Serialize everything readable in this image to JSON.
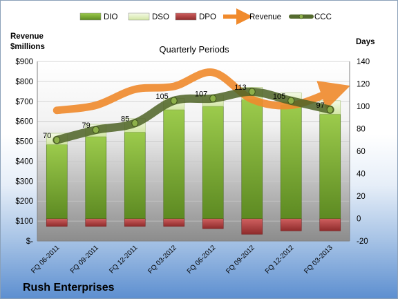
{
  "company": "Rush Enterprises",
  "chart_data": {
    "type": "bar",
    "title": "Quarterly Periods",
    "left_axis_label": [
      "Revenue",
      "$millions"
    ],
    "right_axis_label": "Days",
    "categories": [
      "FQ 06-2011",
      "FQ 09-2011",
      "FQ 12-2011",
      "FQ 03-2012",
      "FQ 06-2012",
      "FQ 09-2012",
      "FQ 12-2012",
      "FQ 03-2013"
    ],
    "left_axis": {
      "min": 0,
      "max": 900,
      "step": 100,
      "ticks": [
        "$-",
        "$100",
        "$200",
        "$300",
        "$400",
        "$500",
        "$600",
        "$700",
        "$800",
        "$900"
      ]
    },
    "right_axis": {
      "min": -20,
      "max": 140,
      "step": 20,
      "ticks": [
        "-20",
        "0",
        "20",
        "40",
        "60",
        "80",
        "100",
        "120",
        "140"
      ]
    },
    "legend": {
      "placement": "top",
      "items": [
        {
          "key": "dio",
          "label": "DIO",
          "color": "#6b9a2e"
        },
        {
          "key": "dso",
          "label": "DSO",
          "color": "#e4f0c8"
        },
        {
          "key": "dpo",
          "label": "DPO",
          "color": "#b84a4a"
        },
        {
          "key": "revenue",
          "label": "Revenue",
          "color": "#f08a2c"
        },
        {
          "key": "ccc",
          "label": "CCC",
          "color": "#556b2f"
        }
      ]
    },
    "series": [
      {
        "key": "dio",
        "axis": "right",
        "values": [
          66,
          73,
          77,
          97,
          100,
          106,
          101,
          93
        ]
      },
      {
        "key": "dso",
        "axis": "right",
        "values": [
          10,
          11,
          12,
          10,
          10,
          11,
          11,
          12
        ]
      },
      {
        "key": "dpo",
        "axis": "right",
        "values": [
          -7,
          -7,
          -7,
          -7,
          -9,
          -14,
          -11,
          -11
        ]
      },
      {
        "key": "revenue",
        "axis": "left",
        "values": [
          655,
          680,
          760,
          775,
          845,
          710,
          680,
          745
        ]
      },
      {
        "key": "ccc",
        "axis": "right",
        "values": [
          70,
          79,
          85,
          105,
          107,
          113,
          105,
          97
        ]
      }
    ],
    "ccc_labels": [
      "70",
      "79",
      "85",
      "105",
      "107",
      "113",
      "105",
      "97"
    ],
    "colors": {
      "dio_top": "#9ccb4c",
      "dio_bottom": "#5d8a22",
      "dso_top": "#f4fae6",
      "dso_bottom": "#d2e6a4",
      "dpo_top": "#d06060",
      "dpo_bottom": "#8e2b2b",
      "revenue": "#f08a2c",
      "ccc": "#4d6326",
      "ccc_marker": "#8db04a"
    }
  }
}
